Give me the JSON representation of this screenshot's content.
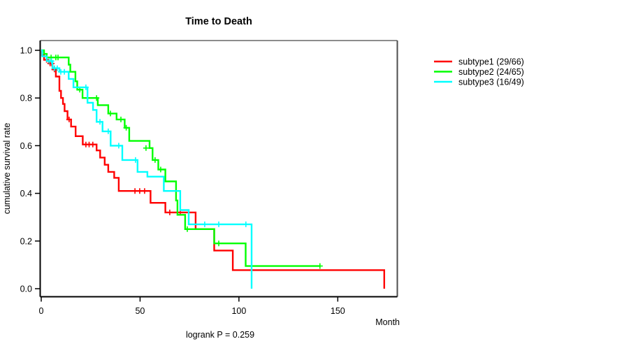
{
  "chart_data": {
    "type": "line",
    "subtype": "kaplan-meier-survival-steps",
    "title": "Time to Death",
    "xlabel": "Month",
    "ylabel": "cumulative survival rate",
    "annotation": "logrank P = 0.259",
    "xlim": [
      0,
      180
    ],
    "ylim": [
      0.0,
      1.0
    ],
    "x_ticks": [
      0,
      50,
      100,
      150
    ],
    "y_ticks": [
      0.0,
      0.2,
      0.4,
      0.6,
      0.8,
      1.0
    ],
    "grid": false,
    "legend_position": "right-outside",
    "frame_colors": {
      "top": "#8c8c8c",
      "right": "#4d4d4d",
      "left": "#000000",
      "bottom": "#000000"
    },
    "series": [
      {
        "name": "subtype1",
        "legend_label": "subtype1 (29/66)",
        "color": "#ff0000",
        "steps": [
          [
            0,
            1.0
          ],
          [
            0.4,
            0.98
          ],
          [
            1.4,
            0.96
          ],
          [
            3.9,
            0.945
          ],
          [
            5.7,
            0.92
          ],
          [
            7.4,
            0.89
          ],
          [
            9.2,
            0.83
          ],
          [
            10.0,
            0.8
          ],
          [
            11.0,
            0.775
          ],
          [
            11.8,
            0.745
          ],
          [
            13.3,
            0.71
          ],
          [
            15.1,
            0.68
          ],
          [
            17.4,
            0.64
          ],
          [
            21.0,
            0.605
          ],
          [
            28.0,
            0.58
          ],
          [
            29.8,
            0.55
          ],
          [
            32.1,
            0.52
          ],
          [
            33.9,
            0.49
          ],
          [
            36.9,
            0.465
          ],
          [
            39.2,
            0.41
          ],
          [
            55.3,
            0.36
          ],
          [
            62.8,
            0.32
          ],
          [
            78.1,
            0.25
          ],
          [
            87.5,
            0.16
          ],
          [
            96.9,
            0.078
          ],
          [
            173.5,
            0.0
          ]
        ],
        "censors": [
          [
            2.7,
            0.96
          ],
          [
            4.5,
            0.945
          ],
          [
            5.3,
            0.945
          ],
          [
            6.6,
            0.92
          ],
          [
            14.1,
            0.71
          ],
          [
            22.6,
            0.605
          ],
          [
            24.2,
            0.605
          ],
          [
            26.1,
            0.605
          ],
          [
            47.4,
            0.41
          ],
          [
            49.8,
            0.41
          ],
          [
            52.3,
            0.41
          ],
          [
            65.0,
            0.32
          ],
          [
            70.3,
            0.32
          ]
        ]
      },
      {
        "name": "subtype2",
        "legend_label": "subtype2 (24/65)",
        "color": "#00ff00",
        "steps": [
          [
            0,
            1.0
          ],
          [
            1.4,
            0.985
          ],
          [
            2.8,
            0.97
          ],
          [
            13.9,
            0.94
          ],
          [
            14.7,
            0.91
          ],
          [
            17.3,
            0.87
          ],
          [
            18.2,
            0.835
          ],
          [
            20.9,
            0.8
          ],
          [
            28.6,
            0.77
          ],
          [
            33.9,
            0.735
          ],
          [
            38.1,
            0.71
          ],
          [
            42.2,
            0.675
          ],
          [
            44.5,
            0.62
          ],
          [
            54.8,
            0.59
          ],
          [
            56.3,
            0.54
          ],
          [
            59.2,
            0.5
          ],
          [
            62.8,
            0.45
          ],
          [
            68.2,
            0.37
          ],
          [
            68.9,
            0.31
          ],
          [
            72.8,
            0.25
          ],
          [
            87.5,
            0.19
          ],
          [
            103.4,
            0.095
          ],
          [
            141.0,
            0.095
          ]
        ],
        "censors": [
          [
            5.0,
            0.97
          ],
          [
            7.4,
            0.97
          ],
          [
            8.5,
            0.97
          ],
          [
            19.5,
            0.835
          ],
          [
            28.0,
            0.8
          ],
          [
            35.0,
            0.735
          ],
          [
            40.3,
            0.71
          ],
          [
            43.0,
            0.675
          ],
          [
            53.0,
            0.59
          ],
          [
            57.6,
            0.54
          ],
          [
            60.4,
            0.5
          ],
          [
            73.9,
            0.25
          ],
          [
            89.8,
            0.19
          ],
          [
            141.0,
            0.095
          ]
        ]
      },
      {
        "name": "subtype3",
        "legend_label": "subtype3 (16/49)",
        "color": "#00ffff",
        "steps": [
          [
            0,
            1.0
          ],
          [
            0.5,
            0.975
          ],
          [
            2.8,
            0.955
          ],
          [
            5.7,
            0.925
          ],
          [
            9.2,
            0.91
          ],
          [
            13.9,
            0.88
          ],
          [
            16.3,
            0.845
          ],
          [
            23.4,
            0.78
          ],
          [
            26.2,
            0.75
          ],
          [
            28.0,
            0.7
          ],
          [
            31.0,
            0.66
          ],
          [
            35.1,
            0.6
          ],
          [
            41.0,
            0.54
          ],
          [
            48.7,
            0.49
          ],
          [
            53.7,
            0.47
          ],
          [
            62.0,
            0.41
          ],
          [
            70.3,
            0.33
          ],
          [
            74.6,
            0.27
          ],
          [
            106.4,
            0.0
          ]
        ],
        "censors": [
          [
            4.0,
            0.955
          ],
          [
            5.2,
            0.955
          ],
          [
            6.7,
            0.925
          ],
          [
            8.1,
            0.925
          ],
          [
            9.9,
            0.91
          ],
          [
            11.7,
            0.91
          ],
          [
            22.6,
            0.845
          ],
          [
            29.7,
            0.7
          ],
          [
            33.9,
            0.66
          ],
          [
            39.2,
            0.6
          ],
          [
            47.7,
            0.54
          ],
          [
            82.7,
            0.27
          ],
          [
            89.8,
            0.27
          ],
          [
            103.5,
            0.27
          ]
        ]
      }
    ]
  }
}
